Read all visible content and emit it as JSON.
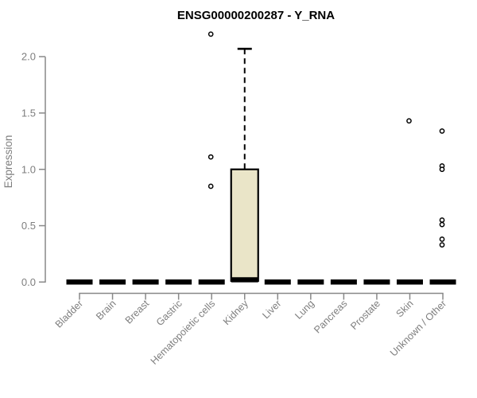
{
  "chart_data": {
    "type": "boxplot",
    "title": "ENSG00000200287 - Y_RNA",
    "ylabel": "Expression",
    "xlabel": "",
    "grid": false,
    "legend": null,
    "ylim": [
      0,
      2.25
    ],
    "yticks": [
      {
        "value": 0.0,
        "label": "0.0"
      },
      {
        "value": 0.5,
        "label": "0.5"
      },
      {
        "value": 1.0,
        "label": "1.0"
      },
      {
        "value": 1.5,
        "label": "1.5"
      },
      {
        "value": 2.0,
        "label": "2.0"
      }
    ],
    "categories": [
      "Bladder",
      "Brain",
      "Breast",
      "Gastric",
      "Hematopoietic cells",
      "Kidney",
      "Liver",
      "Lung",
      "Pancreas",
      "Prostate",
      "Skin",
      "Unknown / Other"
    ],
    "series": [
      {
        "category": "Bladder",
        "q1": 0,
        "median": 0,
        "q3": 0,
        "whisker_low": 0,
        "whisker_high": 0,
        "outliers": []
      },
      {
        "category": "Brain",
        "q1": 0,
        "median": 0,
        "q3": 0,
        "whisker_low": 0,
        "whisker_high": 0,
        "outliers": []
      },
      {
        "category": "Breast",
        "q1": 0,
        "median": 0,
        "q3": 0,
        "whisker_low": 0,
        "whisker_high": 0,
        "outliers": []
      },
      {
        "category": "Gastric",
        "q1": 0,
        "median": 0,
        "q3": 0,
        "whisker_low": 0,
        "whisker_high": 0,
        "outliers": []
      },
      {
        "category": "Hematopoietic cells",
        "q1": 0,
        "median": 0,
        "q3": 0,
        "whisker_low": 0,
        "whisker_high": 0,
        "outliers": [
          2.2,
          1.11,
          0.85
        ]
      },
      {
        "category": "Kidney",
        "q1": 0.01,
        "median": 0.02,
        "q3": 1.0,
        "whisker_low": 0,
        "whisker_high": 2.07,
        "outliers": []
      },
      {
        "category": "Liver",
        "q1": 0,
        "median": 0,
        "q3": 0,
        "whisker_low": 0,
        "whisker_high": 0,
        "outliers": []
      },
      {
        "category": "Lung",
        "q1": 0,
        "median": 0,
        "q3": 0,
        "whisker_low": 0,
        "whisker_high": 0,
        "outliers": []
      },
      {
        "category": "Pancreas",
        "q1": 0,
        "median": 0,
        "q3": 0,
        "whisker_low": 0,
        "whisker_high": 0,
        "outliers": []
      },
      {
        "category": "Prostate",
        "q1": 0,
        "median": 0,
        "q3": 0,
        "whisker_low": 0,
        "whisker_high": 0,
        "outliers": []
      },
      {
        "category": "Skin",
        "q1": 0,
        "median": 0,
        "q3": 0,
        "whisker_low": 0,
        "whisker_high": 0,
        "outliers": [
          1.43
        ]
      },
      {
        "category": "Unknown / Other",
        "q1": 0,
        "median": 0,
        "q3": 0,
        "whisker_low": 0,
        "whisker_high": 0,
        "outliers": [
          1.34,
          1.03,
          1.0,
          0.55,
          0.51,
          0.38,
          0.33
        ]
      }
    ],
    "colors": {
      "box_fill": "#EAE5C8",
      "box_stroke": "#000000",
      "median": "#000000",
      "outlier_fill": "#FFFFFF",
      "outlier_stroke": "#000000",
      "axis_line": "#888888",
      "axis_text": "#7E7E7E",
      "title": "#000000",
      "background": "#FFFFFF"
    }
  }
}
